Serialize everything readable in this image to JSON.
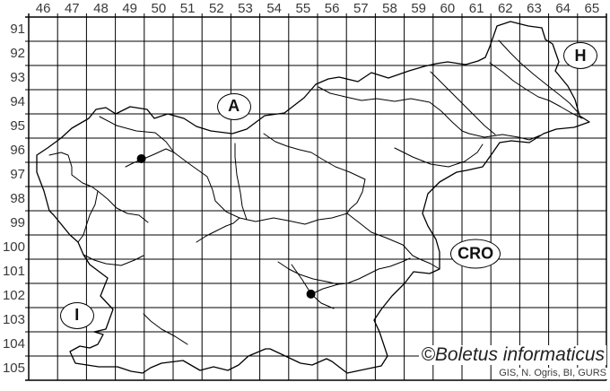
{
  "map": {
    "watermark": "©Boletus informaticus",
    "attribution": "GIS, N. Ogris, BI, GURS",
    "colors": {
      "background": "#ffffff",
      "grid_line": "#000000",
      "outline": "#000000",
      "river": "#000000",
      "axis_text": "#3a3a3a",
      "dot": "#000000"
    },
    "grid": {
      "columns": [
        "46",
        "47",
        "48",
        "49",
        "50",
        "51",
        "52",
        "53",
        "54",
        "55",
        "56",
        "57",
        "58",
        "59",
        "60",
        "61",
        "62",
        "63",
        "64",
        "65"
      ],
      "rows": [
        "91",
        "92",
        "93",
        "94",
        "95",
        "96",
        "97",
        "98",
        "99",
        "100",
        "101",
        "102",
        "103",
        "104",
        "105"
      ],
      "first_column": 46,
      "first_row": 91
    },
    "country_labels": [
      {
        "label": "A",
        "grid_column": 53.1,
        "grid_row": 94.7
      },
      {
        "label": "H",
        "grid_column": 65.1,
        "grid_row": 92.6
      },
      {
        "label": "CRO",
        "grid_column": 61.47,
        "grid_row": 100.78
      },
      {
        "label": "I",
        "grid_column": 47.67,
        "grid_row": 103.33
      }
    ],
    "occurrence_dots": [
      {
        "grid_column": 49.9,
        "grid_row": 96.85
      },
      {
        "grid_column": 55.77,
        "grid_row": 102.44
      }
    ]
  }
}
